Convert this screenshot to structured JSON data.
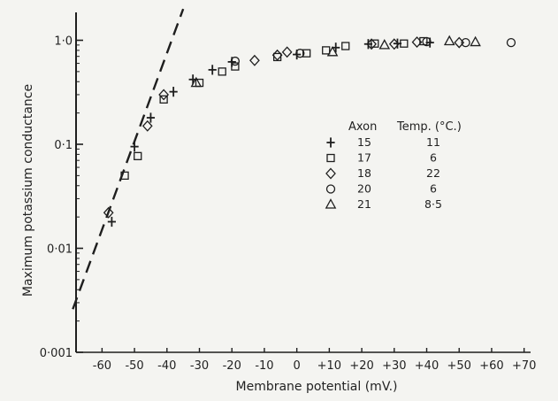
{
  "chart_data": {
    "type": "scatter",
    "xlabel": "Membrane potential (mV.)",
    "ylabel": "Maximum potassium conductance",
    "xlim": [
      -68,
      72
    ],
    "ylim": [
      0.001,
      1.6
    ],
    "yscale": "log",
    "grid": false,
    "x_ticks": [
      {
        "value": -60,
        "label": "-60"
      },
      {
        "value": -50,
        "label": "-50"
      },
      {
        "value": -40,
        "label": "-40"
      },
      {
        "value": -30,
        "label": "-30"
      },
      {
        "value": -20,
        "label": "-20"
      },
      {
        "value": -10,
        "label": "-10"
      },
      {
        "value": 0,
        "label": "0"
      },
      {
        "value": 10,
        "label": "+10"
      },
      {
        "value": 20,
        "label": "+20"
      },
      {
        "value": 30,
        "label": "+30"
      },
      {
        "value": 40,
        "label": "+40"
      },
      {
        "value": 50,
        "label": "+50"
      },
      {
        "value": 60,
        "label": "+60"
      },
      {
        "value": 70,
        "label": "+70"
      }
    ],
    "y_ticks": [
      {
        "value": 0.001,
        "label": "0·001"
      },
      {
        "value": 0.01,
        "label": "0·01"
      },
      {
        "value": 0.1,
        "label": "0·1"
      },
      {
        "value": 1.0,
        "label": "1·0"
      }
    ],
    "legend": {
      "placement": "center-right",
      "header_axon": "Axon",
      "header_temp": "Temp. (°C.)",
      "entries": [
        {
          "marker": "plus",
          "axon": "15",
          "temp": "11"
        },
        {
          "marker": "square",
          "axon": "17",
          "temp": "6"
        },
        {
          "marker": "diamond",
          "axon": "18",
          "temp": "22"
        },
        {
          "marker": "circle",
          "axon": "20",
          "temp": "6"
        },
        {
          "marker": "triangle",
          "axon": "21",
          "temp": "8·5"
        }
      ]
    },
    "reference_line": {
      "style": "dashed",
      "points": [
        [
          -69,
          0.0026
        ],
        [
          -35,
          2.0
        ]
      ]
    },
    "series": [
      {
        "name": "15",
        "marker": "plus",
        "points": [
          [
            -57,
            0.018
          ],
          [
            -50,
            0.095
          ],
          [
            -45,
            0.18
          ],
          [
            -38,
            0.32
          ],
          [
            -32,
            0.42
          ],
          [
            -26,
            0.52
          ],
          [
            -20,
            0.62
          ],
          [
            0,
            0.73
          ],
          [
            12,
            0.85
          ],
          [
            22,
            0.92
          ],
          [
            31,
            0.93
          ],
          [
            41,
            0.95
          ]
        ]
      },
      {
        "name": "17",
        "marker": "square",
        "points": [
          [
            -53,
            0.05
          ],
          [
            -49,
            0.077
          ],
          [
            -41,
            0.27
          ],
          [
            -30,
            0.39
          ],
          [
            -23,
            0.5
          ],
          [
            -19,
            0.56
          ],
          [
            -6,
            0.69
          ],
          [
            3,
            0.75
          ],
          [
            9,
            0.8
          ],
          [
            15,
            0.88
          ],
          [
            24,
            0.93
          ],
          [
            33,
            0.93
          ],
          [
            39,
            0.98
          ]
        ]
      },
      {
        "name": "18",
        "marker": "diamond",
        "points": [
          [
            -58,
            0.022
          ],
          [
            -46,
            0.15
          ],
          [
            -41,
            0.3
          ],
          [
            -13,
            0.64
          ],
          [
            -6,
            0.72
          ],
          [
            -3,
            0.77
          ],
          [
            23,
            0.92
          ],
          [
            30,
            0.92
          ],
          [
            37,
            0.96
          ],
          [
            50,
            0.95
          ]
        ]
      },
      {
        "name": "20",
        "marker": "circle",
        "points": [
          [
            -19,
            0.63
          ],
          [
            1,
            0.75
          ],
          [
            40,
            0.97
          ],
          [
            52,
            0.95
          ],
          [
            66,
            0.95
          ]
        ]
      },
      {
        "name": "21",
        "marker": "triangle",
        "points": [
          [
            -31,
            0.39
          ],
          [
            11,
            0.77
          ],
          [
            27,
            0.9
          ],
          [
            47,
            0.98
          ],
          [
            55,
            0.96
          ]
        ]
      }
    ]
  }
}
